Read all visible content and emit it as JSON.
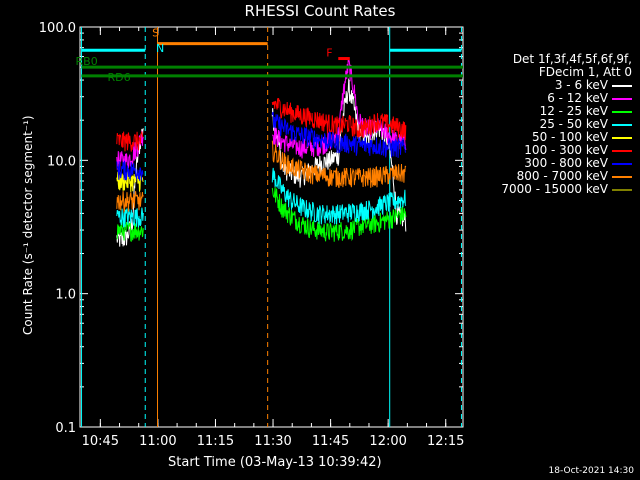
{
  "chart_data": {
    "type": "line",
    "title": "RHESSI Count Rates",
    "xlabel": "Start Time (03-May-13 10:39:42)",
    "ylabel": "Count Rate (s⁻¹ detector segment⁻¹)",
    "yscale": "log",
    "ylim": [
      0.1,
      100
    ],
    "xlim_minutes": [
      39.7,
      139.5
    ],
    "y_ticks": [
      {
        "value": 0.1,
        "label": "0.1"
      },
      {
        "value": 1,
        "label": "1.0"
      },
      {
        "value": 10,
        "label": "10.0"
      },
      {
        "value": 100,
        "label": "100.0"
      }
    ],
    "x_ticks": [
      {
        "minute": 45,
        "label": "10:45"
      },
      {
        "minute": 60,
        "label": "11:00"
      },
      {
        "minute": 75,
        "label": "11:15"
      },
      {
        "minute": 90,
        "label": "11:30"
      },
      {
        "minute": 105,
        "label": "11:45"
      },
      {
        "minute": 120,
        "label": "12:00"
      },
      {
        "minute": 135,
        "label": "12:15"
      }
    ],
    "legend_header": [
      "Det 1f,3f,4f,5f,6f,9f,",
      "FDecim 1, Att 0"
    ],
    "series": [
      {
        "name": "3 - 6 keV",
        "color": "#ffffff",
        "segments": [
          {
            "start": 49.3,
            "end": 56.2,
            "levels": [
              2.6,
              2.5,
              2.7,
              3.5,
              11.0,
              18.0
            ]
          },
          {
            "start": 89.8,
            "end": 124.6,
            "levels": [
              22.0,
              9.0,
              8.0,
              7.5,
              8.5,
              9.5,
              10.0,
              11.0,
              35.0,
              17.0,
              14.0,
              18.0,
              15.0,
              4.0,
              3.5
            ]
          }
        ]
      },
      {
        "name": "6 - 12 keV",
        "color": "#ff00ff",
        "segments": [
          {
            "start": 49.3,
            "end": 56.2,
            "levels": [
              10.0,
              10.0,
              10.0,
              11.0,
              13.0,
              16.0
            ]
          },
          {
            "start": 89.8,
            "end": 124.6,
            "levels": [
              16.0,
              14.0,
              13.0,
              12.5,
              12.5,
              13.0,
              14.0,
              16.0,
              52.0,
              20.0,
              17.0,
              18.0,
              16.0,
              14.0,
              14.0
            ]
          }
        ]
      },
      {
        "name": "12 - 25 keV",
        "color": "#00ff00",
        "segments": [
          {
            "start": 49.3,
            "end": 56.2,
            "levels": [
              3.0,
              3.0,
              3.0,
              3.0,
              3.0,
              3.0
            ]
          },
          {
            "start": 89.8,
            "end": 124.6,
            "levels": [
              6.0,
              4.5,
              3.8,
              3.4,
              3.1,
              3.0,
              2.9,
              3.0,
              3.0,
              3.2,
              3.3,
              3.4,
              3.6,
              3.8,
              4.0
            ]
          }
        ]
      },
      {
        "name": "25 - 50 keV",
        "color": "#00ffff",
        "segments": [
          {
            "start": 49.3,
            "end": 56.2,
            "levels": [
              3.8,
              3.8,
              3.8,
              3.8,
              3.8,
              3.8
            ]
          },
          {
            "start": 89.8,
            "end": 124.6,
            "levels": [
              8.0,
              6.0,
              5.0,
              4.5,
              4.2,
              4.0,
              4.0,
              4.0,
              4.1,
              4.2,
              4.3,
              4.5,
              4.8,
              5.0,
              5.2
            ]
          }
        ]
      },
      {
        "name": "50 - 100 keV",
        "color": "#ffff00",
        "segments": [
          {
            "start": 49.3,
            "end": 56.2,
            "levels": [
              7.0,
              7.0,
              7.0,
              7.0,
              7.0,
              7.0
            ]
          }
        ]
      },
      {
        "name": "100 - 300 keV",
        "color": "#ff0000",
        "segments": [
          {
            "start": 49.3,
            "end": 56.2,
            "levels": [
              14.0,
              14.0,
              14.0,
              14.0,
              14.0,
              14.0
            ]
          },
          {
            "start": 89.8,
            "end": 124.6,
            "levels": [
              27.0,
              25.0,
              23.0,
              22.0,
              21.0,
              20.0,
              19.0,
              18.0,
              19.0,
              17.0,
              18.0,
              20.0,
              19.0,
              18.0,
              17.0
            ]
          }
        ]
      },
      {
        "name": "300 - 800 keV",
        "color": "#0000ff",
        "segments": [
          {
            "start": 49.3,
            "end": 56.2,
            "levels": [
              8.5,
              8.5,
              8.5,
              8.5,
              8.5,
              8.5
            ]
          },
          {
            "start": 89.8,
            "end": 124.6,
            "levels": [
              20.0,
              18.0,
              16.5,
              15.5,
              15.0,
              14.5,
              14.0,
              13.5,
              13.5,
              13.0,
              13.0,
              13.0,
              12.5,
              12.5,
              12.5
            ]
          }
        ]
      },
      {
        "name": "800 - 7000 keV",
        "color": "#ff8000",
        "segments": [
          {
            "start": 49.3,
            "end": 56.2,
            "levels": [
              5.0,
              5.0,
              5.0,
              5.0,
              5.0,
              5.0
            ]
          },
          {
            "start": 89.8,
            "end": 124.6,
            "levels": [
              12.0,
              10.0,
              9.0,
              8.5,
              8.0,
              7.8,
              7.6,
              7.5,
              7.5,
              7.5,
              7.5,
              7.6,
              7.8,
              8.0,
              8.0
            ]
          }
        ]
      },
      {
        "name": "7000 - 15000 keV",
        "color": "#808000",
        "segments": []
      }
    ],
    "annotations": {
      "vlines": [
        {
          "minute": 40.1,
          "color": "#00ffff",
          "style": "solid"
        },
        {
          "minute": 56.7,
          "color": "#00ffff",
          "style": "dashed"
        },
        {
          "minute": 59.9,
          "color": "#ff8000",
          "style": "solid"
        },
        {
          "minute": 88.6,
          "color": "#ff8000",
          "style": "dashed"
        },
        {
          "minute": 120.4,
          "color": "#00ffff",
          "style": "solid"
        },
        {
          "minute": 139.1,
          "color": "#00ffff",
          "style": "dashed"
        }
      ],
      "hbars": [
        {
          "label": "",
          "start": 40.1,
          "end": 56.7,
          "value": 67,
          "color": "#00ffff"
        },
        {
          "label": "",
          "start": 120.4,
          "end": 139.1,
          "value": 67,
          "color": "#00ffff"
        },
        {
          "label": "",
          "start": 59.9,
          "end": 88.6,
          "value": 75,
          "color": "#ff8000"
        },
        {
          "label": "RB0",
          "start": 40.1,
          "end": 139.5,
          "value": 50,
          "color": "#008000"
        },
        {
          "label": "RD6",
          "start": 40.1,
          "end": 139.5,
          "value": 43,
          "color": "#008000"
        },
        {
          "label": "F",
          "start": 107.0,
          "end": 110.0,
          "value": 58,
          "color": "#ff0000"
        }
      ],
      "markers": [
        {
          "text": "S",
          "minute": 58.5,
          "value": 85,
          "color": "#ff8000"
        },
        {
          "text": "N",
          "minute": 59.5,
          "value": 65,
          "color": "#00ffff"
        }
      ]
    }
  },
  "timestamp": "18-Oct-2021 14:30"
}
